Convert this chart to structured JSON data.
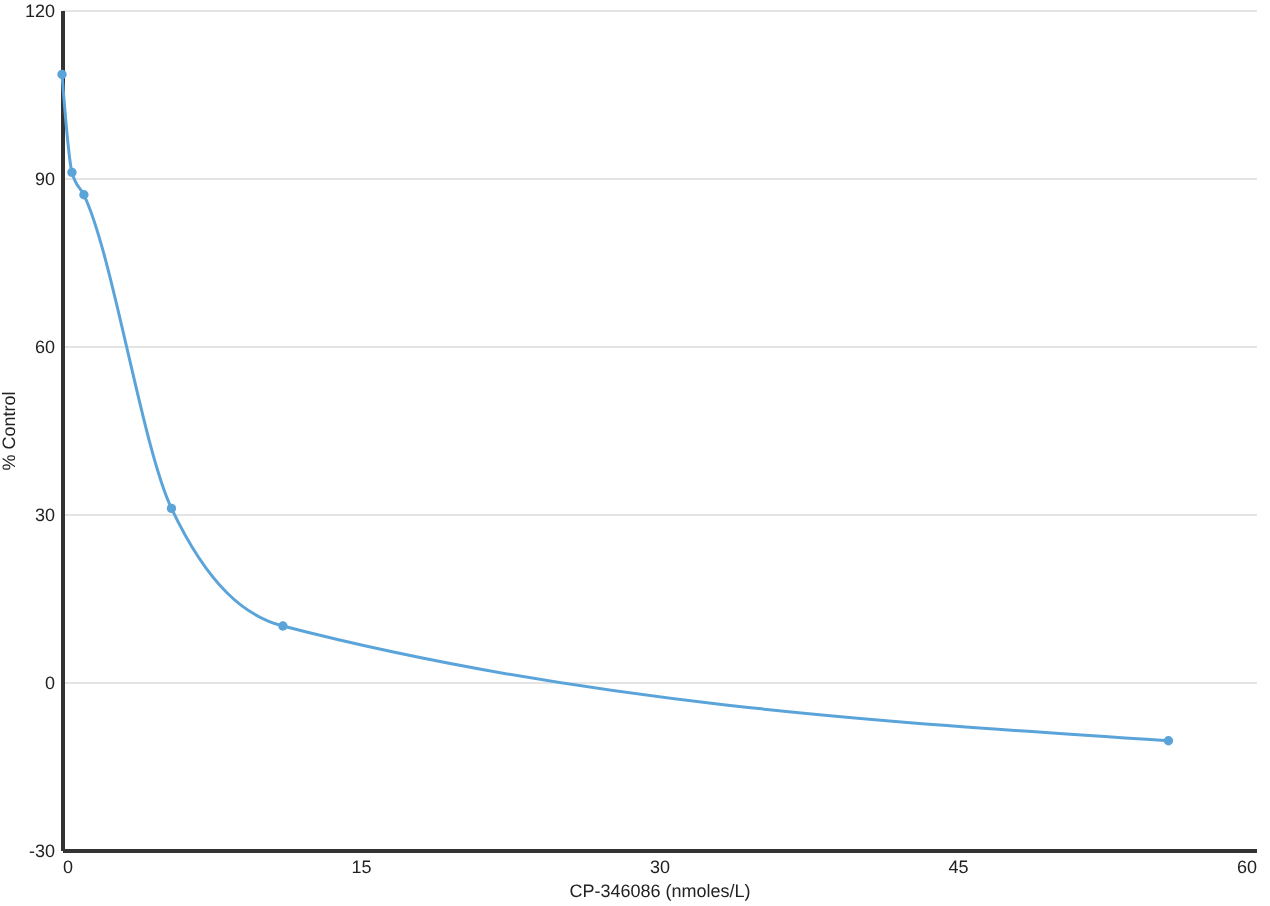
{
  "chart_data": {
    "type": "line",
    "xlabel": "CP-346086 (nmoles/L)",
    "ylabel": "% Control",
    "x": [
      0,
      0.5,
      1.1,
      5.5,
      11.1,
      55.6
    ],
    "series": [
      {
        "color": "#5ba4d9",
        "values": [
          108.5,
          91,
          87,
          31,
          10,
          -10.5
        ]
      }
    ],
    "xlim": [
      0,
      60
    ],
    "xticks": [
      0,
      15,
      30,
      45,
      60
    ],
    "ylim": [
      -30,
      120
    ],
    "yticks": [
      -30,
      0,
      30,
      60,
      90,
      120
    ],
    "grid": "y",
    "marker": "circle",
    "line_style": "solid"
  }
}
